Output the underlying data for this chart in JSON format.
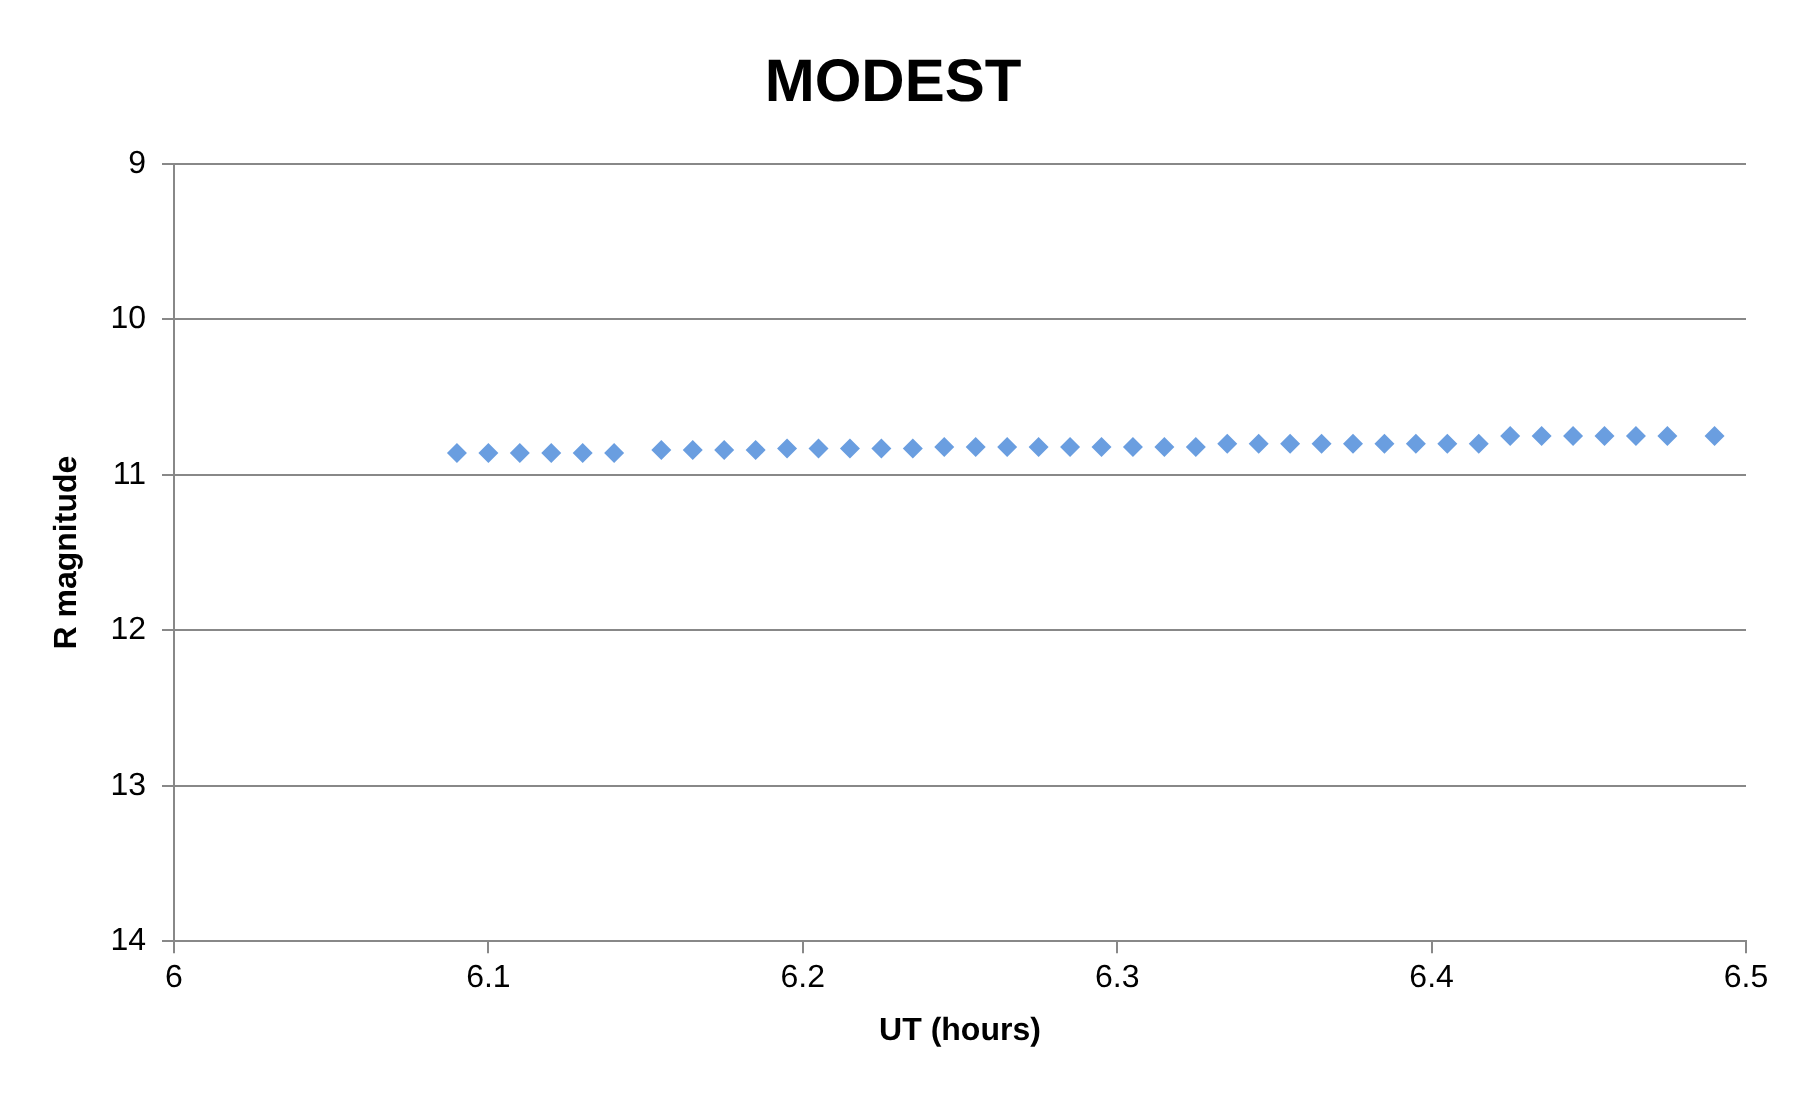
{
  "chart_data": {
    "type": "scatter",
    "title": "MODEST",
    "xlabel": "UT (hours)",
    "ylabel": "R magnitude",
    "xlim": [
      6,
      6.5
    ],
    "xticks": [
      6,
      6.1,
      6.2,
      6.3,
      6.4,
      6.5
    ],
    "ylim": [
      14,
      9
    ],
    "yticks": [
      9,
      10,
      11,
      12,
      13,
      14
    ],
    "grid": "y",
    "legend": false,
    "marker": "diamond",
    "series": [
      {
        "color": "#6a9ee0",
        "x": [
          6.09,
          6.1,
          6.11,
          6.12,
          6.13,
          6.14,
          6.155,
          6.165,
          6.175,
          6.185,
          6.195,
          6.205,
          6.215,
          6.225,
          6.235,
          6.245,
          6.255,
          6.265,
          6.275,
          6.285,
          6.295,
          6.305,
          6.315,
          6.325,
          6.335,
          6.345,
          6.355,
          6.365,
          6.375,
          6.385,
          6.395,
          6.405,
          6.415,
          6.425,
          6.435,
          6.445,
          6.455,
          6.465,
          6.475,
          6.49
        ],
        "values": [
          10.86,
          10.86,
          10.86,
          10.86,
          10.86,
          10.86,
          10.84,
          10.84,
          10.84,
          10.84,
          10.83,
          10.83,
          10.83,
          10.83,
          10.83,
          10.82,
          10.82,
          10.82,
          10.82,
          10.82,
          10.82,
          10.82,
          10.82,
          10.82,
          10.8,
          10.8,
          10.8,
          10.8,
          10.8,
          10.8,
          10.8,
          10.8,
          10.8,
          10.75,
          10.75,
          10.75,
          10.75,
          10.75,
          10.75,
          10.75
        ]
      }
    ]
  }
}
